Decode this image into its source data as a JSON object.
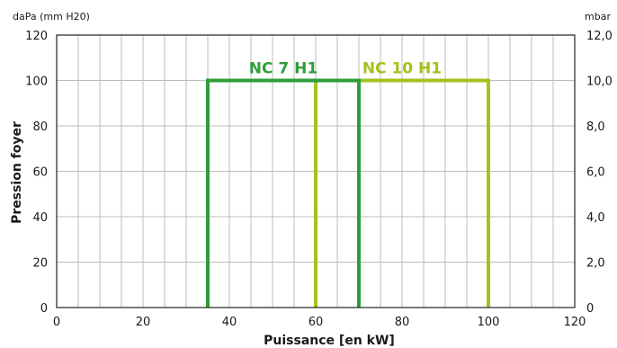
{
  "chart_data": {
    "type": "line",
    "xlabel": "Puissance [en kW]",
    "ylabel": "Pression foyer",
    "y_unit_left": "daPa (mm H20)",
    "y_unit_right": "mbar",
    "xlim": [
      0,
      120
    ],
    "ylim": [
      0,
      120
    ],
    "x_ticks": [
      "0",
      "20",
      "40",
      "60",
      "80",
      "100",
      "120"
    ],
    "x_tick_values": [
      0,
      20,
      40,
      60,
      80,
      100,
      120
    ],
    "y_ticks": [
      "0",
      "20",
      "40",
      "60",
      "80",
      "100",
      "120"
    ],
    "y_tick_values": [
      0,
      20,
      40,
      60,
      80,
      100,
      120
    ],
    "y_right_ticks": [
      "0",
      "2,0",
      "4,0",
      "6,0",
      "8,0",
      "10,0",
      "12,0"
    ],
    "grid": true,
    "series": [
      {
        "name": "NC 7 H1",
        "color": "#2e9e3a",
        "x": [
          35,
          35,
          70,
          70
        ],
        "y": [
          0,
          100,
          100,
          0
        ]
      },
      {
        "name": "NC 10 H1",
        "color": "#a3c21d",
        "x": [
          60,
          60,
          100,
          100
        ],
        "y": [
          0,
          100,
          100,
          0
        ]
      }
    ]
  }
}
